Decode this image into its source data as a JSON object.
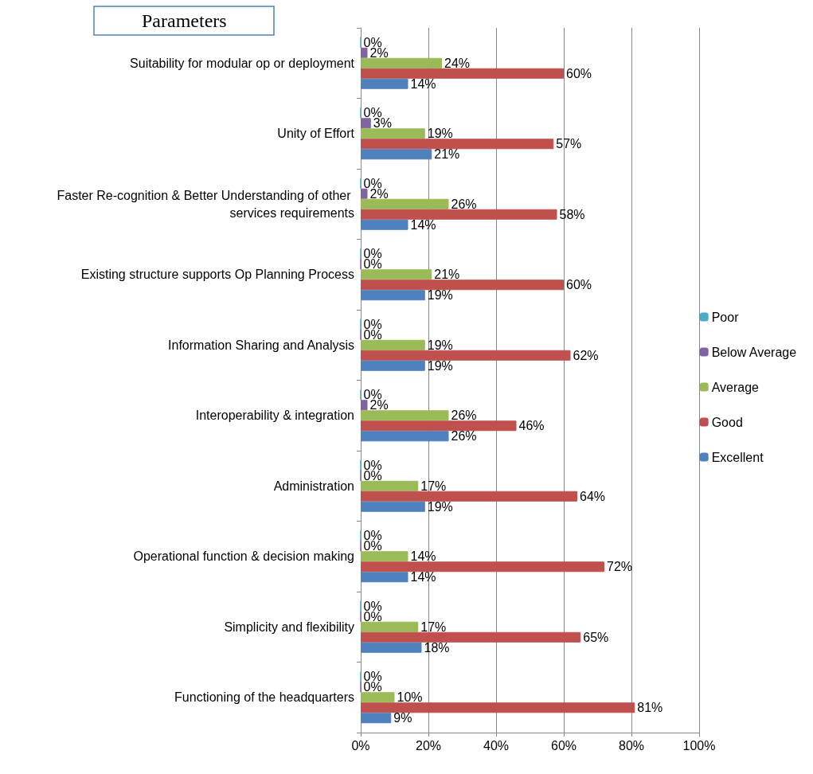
{
  "chart_data": {
    "type": "bar",
    "orientation": "horizontal",
    "ylabel": "Parameters",
    "categories": [
      "Suitability for modular op or deployment",
      "Unity of Effort",
      "Faster Re-cognition & Better Understanding of other services requirements",
      "Existing structure supports Op Planning Process",
      "Information Sharing and Analysis",
      "Interoperability & integration",
      "Administration",
      "Operational function & decision making",
      "Simplicity and flexibility",
      "Functioning of the headquarters"
    ],
    "series": [
      {
        "name": "Excellent",
        "color": "#4f81bd",
        "values": [
          14,
          21,
          14,
          19,
          19,
          26,
          19,
          14,
          18,
          9
        ],
        "value_labels": [
          "14%",
          "21%",
          "14%",
          "19%",
          "19%",
          "26%",
          "19%",
          "14%",
          "18%",
          "9%"
        ]
      },
      {
        "name": "Good",
        "color": "#c0504d",
        "values": [
          60,
          57,
          58,
          60,
          62,
          46,
          64,
          72,
          65,
          81
        ],
        "value_labels": [
          "60%",
          "57%",
          "58%",
          "60%",
          "62%",
          "46%",
          "64%",
          "72%",
          "65%",
          "81%"
        ]
      },
      {
        "name": "Average",
        "color": "#9bbb59",
        "values": [
          24,
          19,
          26,
          21,
          19,
          26,
          17,
          14,
          17,
          10
        ],
        "value_labels": [
          "24%",
          "19%",
          "26%",
          "21%",
          "19%",
          "26%",
          "17%",
          "14%",
          "17%",
          "10%"
        ]
      },
      {
        "name": "Below Average",
        "color": "#8064a2",
        "values": [
          2,
          3,
          2,
          0,
          0,
          2,
          0,
          0,
          0,
          0
        ],
        "value_labels": [
          "2%",
          "3%",
          "2%",
          "0%",
          "0%",
          "2%",
          "0%",
          "0%",
          "0%",
          "0%"
        ]
      },
      {
        "name": "Poor",
        "color": "#4bacc6",
        "values": [
          0,
          0,
          0,
          0,
          0,
          0,
          0,
          0,
          0,
          0
        ],
        "value_labels": [
          "0%",
          "0%",
          "0%",
          "0%",
          "0%",
          "0%",
          "0%",
          "0%",
          "0%",
          "0%"
        ]
      }
    ],
    "xlim": [
      0,
      100
    ],
    "xticks": [
      {
        "value": 0,
        "label": "0%"
      },
      {
        "value": 20,
        "label": "20%"
      },
      {
        "value": 40,
        "label": "40%"
      },
      {
        "value": 60,
        "label": "60%"
      },
      {
        "value": 80,
        "label": "80%"
      },
      {
        "value": 100,
        "label": "100%"
      }
    ],
    "grid": "x",
    "legend": "right"
  }
}
